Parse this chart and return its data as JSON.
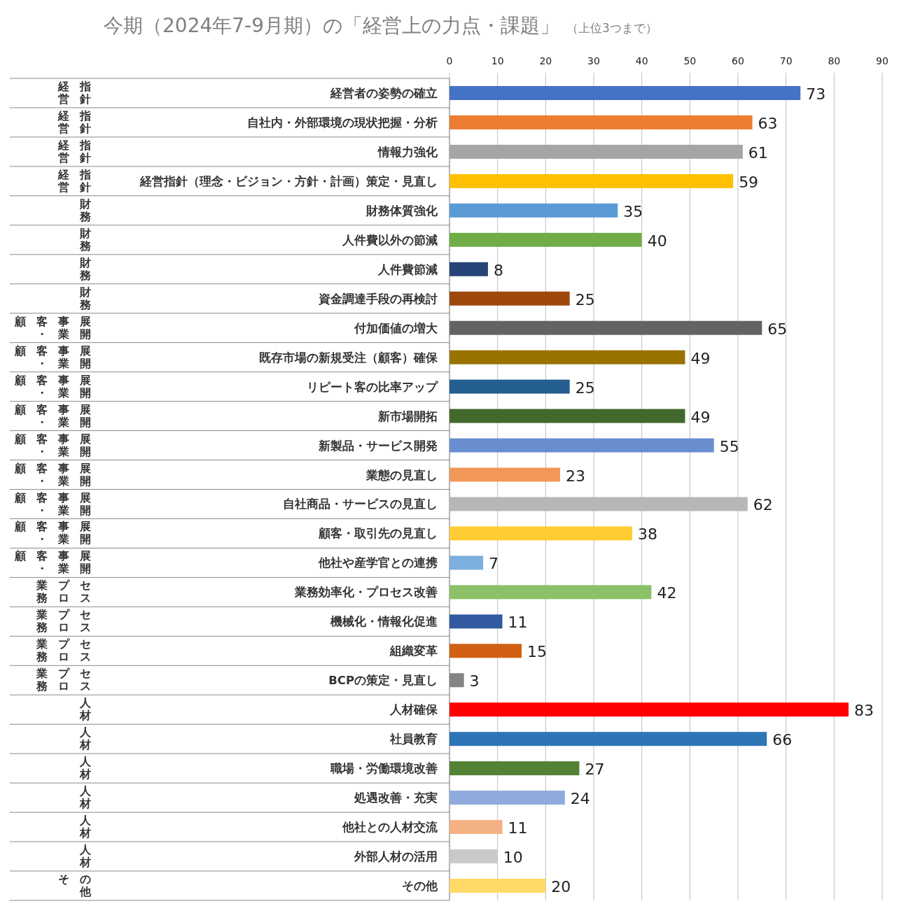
{
  "chart_data": {
    "type": "bar",
    "orientation": "horizontal",
    "title": "今期（2024年7-9月期）の「経営上の力点・課題」",
    "subtitle": "（上位3つまで）",
    "categories": [
      "経営者の姿勢の確立",
      "自社内・外部環境の現状把握・分析",
      "情報力強化",
      "経営指針（理念・ビジョン・方針・計画）策定・見直し",
      "財務体質強化",
      "人件費以外の節減",
      "人件費節減",
      "資金調達手段の再検討",
      "付加価値の増大",
      "既存市場の新規受注（顧客）確保",
      "リピート客の比率アップ",
      "新市場開拓",
      "新製品・サービス開発",
      "業態の見直し",
      "自社商品・サービスの見直し",
      "顧客・取引先の見直し",
      "他社や産学官との連携",
      "業務効率化・プロセス改善",
      "機械化・情報化促進",
      "組織変革",
      "BCPの策定・見直し",
      "人材確保",
      "社員教育",
      "職場・労働環境改善",
      "処遇改善・充実",
      "他社との人材交流",
      "外部人材の活用",
      "その他"
    ],
    "values": [
      73,
      63,
      61,
      59,
      35,
      40,
      8,
      25,
      65,
      49,
      25,
      49,
      55,
      23,
      62,
      38,
      7,
      42,
      11,
      15,
      3,
      83,
      66,
      27,
      24,
      11,
      10,
      20
    ],
    "colors": [
      "#4472c4",
      "#ed7d31",
      "#a5a5a5",
      "#ffc000",
      "#5b9bd5",
      "#70ad47",
      "#264478",
      "#9e480e",
      "#636363",
      "#997300",
      "#255e91",
      "#43682b",
      "#698ed0",
      "#f1975a",
      "#b7b7b7",
      "#ffcd33",
      "#7cafdd",
      "#8cc168",
      "#335aa1",
      "#d26012",
      "#848484",
      "#ff0000",
      "#2e75b6",
      "#548235",
      "#8faadc",
      "#f4b183",
      "#c9c9c9",
      "#ffd966"
    ],
    "xlim": [
      0,
      90
    ],
    "xticks": [
      0,
      10,
      20,
      30,
      40,
      50,
      60,
      70,
      80,
      90
    ],
    "grid": "x",
    "data_labels": true,
    "annotations": [
      "経営指針",
      "経営指針",
      "経営指針",
      "経営指針",
      "財務",
      "財務",
      "財務",
      "財務",
      "顧客・事業展開",
      "顧客・事業展開",
      "顧客・事業展開",
      "顧客・事業展開",
      "顧客・事業展開",
      "顧客・事業展開",
      "顧客・事業展開",
      "顧客・事業展開",
      "顧客・事業展開",
      "業務プロセス",
      "業務プロセス",
      "業務プロセス",
      "業務プロセス",
      "人材",
      "人材",
      "人材",
      "人材",
      "人材",
      "人材",
      "その他"
    ]
  }
}
